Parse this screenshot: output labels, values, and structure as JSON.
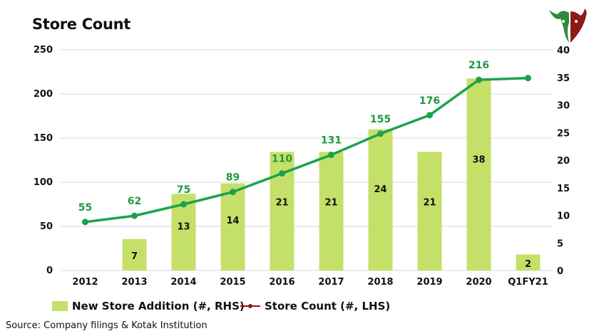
{
  "title": "Store Count",
  "source": "Source: Company filings & Kotak Institution",
  "colors": {
    "bar": "#c5e069",
    "line": "#1aa34a",
    "line_label": "#1f9a3f",
    "grid": "#d9d9d9",
    "legend_line": "#8b1a1a"
  },
  "chart_data": {
    "type": "bar+line",
    "title": "Store Count",
    "categories": [
      "2012",
      "2013",
      "2014",
      "2015",
      "2016",
      "2017",
      "2018",
      "2019",
      "2020",
      "Q1FY21"
    ],
    "series": [
      {
        "name": "New Store Addition (#, RHS)",
        "type": "bar",
        "axis": "right",
        "values": [
          null,
          7,
          13,
          14,
          21,
          21,
          24,
          21,
          38,
          2
        ],
        "display_values": [
          null,
          7,
          13,
          14,
          21,
          21,
          24,
          21,
          38,
          2
        ],
        "labels": [
          "",
          "7",
          "13",
          "14",
          "21",
          "21",
          "24",
          "21",
          "38",
          "2"
        ]
      },
      {
        "name": "Store Count (#, LHS)",
        "type": "line",
        "axis": "left",
        "values": [
          55,
          62,
          75,
          89,
          110,
          131,
          155,
          176,
          216,
          218
        ],
        "labels": [
          "55",
          "62",
          "75",
          "89",
          "110",
          "131",
          "155",
          "176",
          "216",
          ""
        ]
      }
    ],
    "bar_fill_values": [
      null,
      5.7,
      13.9,
      15.8,
      21.5,
      21.5,
      25.6,
      21.5,
      34.8,
      2.9
    ],
    "y_left": {
      "min": 0,
      "max": 250,
      "ticks": [
        "0",
        "50",
        "100",
        "150",
        "200",
        "250"
      ]
    },
    "y_right": {
      "min": 0,
      "max": 40,
      "ticks": [
        "0",
        "5",
        "10",
        "15",
        "20",
        "25",
        "30",
        "35",
        "40"
      ]
    },
    "grid": true,
    "legend_position": "bottom"
  },
  "legend": {
    "bar_label": "New Store Addition (#, RHS)",
    "line_label": "Store Count (#, LHS)"
  },
  "logo_icon": "bull-bear-icon"
}
